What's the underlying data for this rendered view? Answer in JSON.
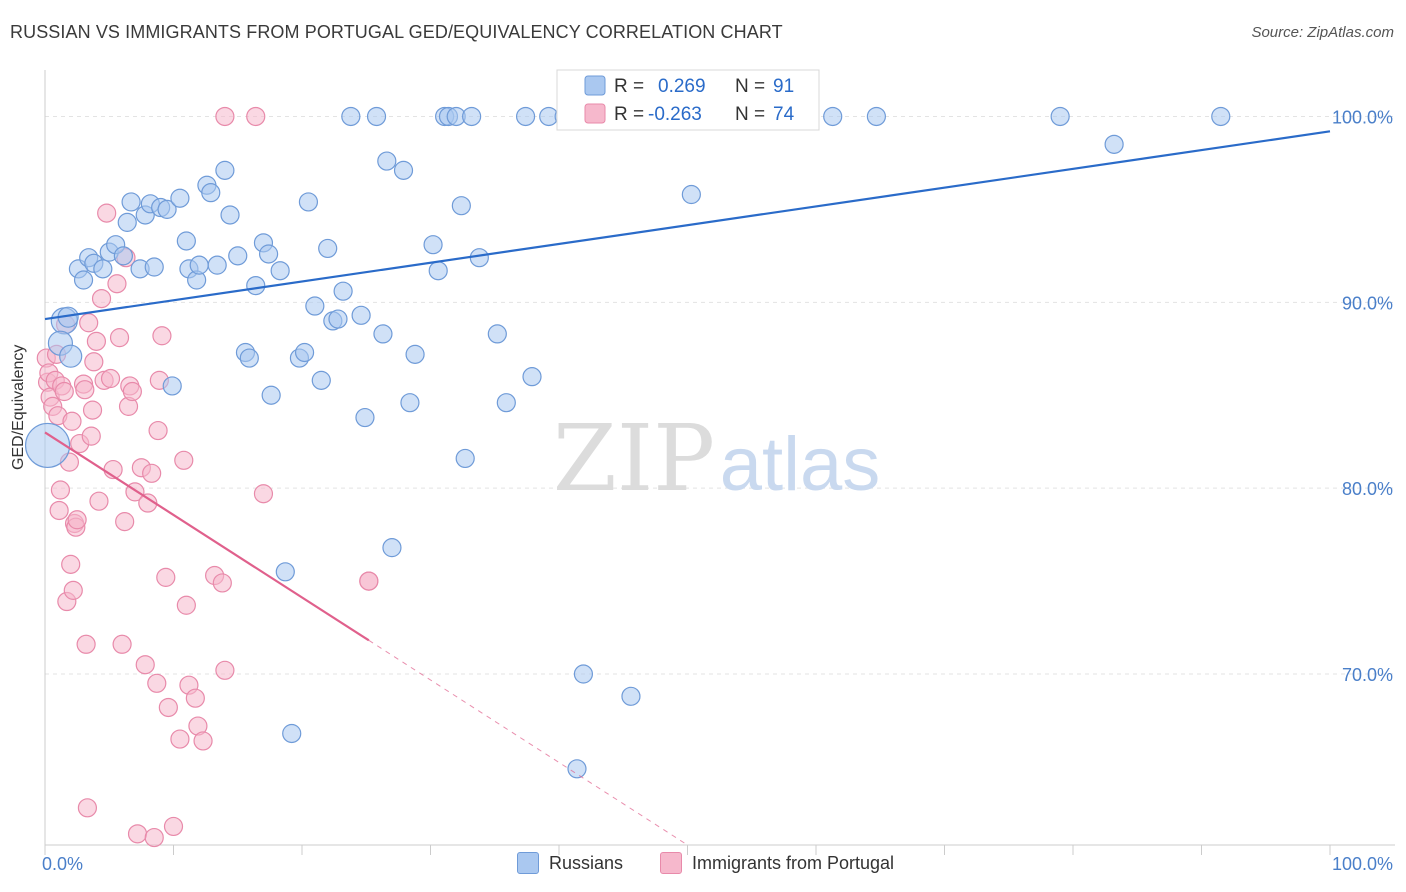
{
  "title": "RUSSIAN VS IMMIGRANTS FROM PORTUGAL GED/EQUIVALENCY CORRELATION CHART",
  "source": "Source: ZipAtlas.com",
  "watermark": {
    "zip": "ZIP",
    "atlas": "atlas"
  },
  "legend": {
    "rows": [
      {
        "r_label": "R = ",
        "r_value": "0.269",
        "n_label": "N = ",
        "n_value": "91"
      },
      {
        "r_label": "R = ",
        "r_value": "-0.263",
        "n_label": "N = ",
        "n_value": "74"
      }
    ]
  },
  "bottom_legend": [
    "Russians",
    "Immigrants from Portugal"
  ],
  "colors": {
    "russians_fill": "#aac8f0",
    "russians_stroke": "#6f9bd8",
    "russians_line": "#2a6bc9",
    "portugal_fill": "#f6b8cc",
    "portugal_stroke": "#e88aaa",
    "portugal_line": "#e0608c",
    "tick_label": "#4a7fc9",
    "grid": "#e3e3e3"
  },
  "chart_data": {
    "type": "scatter",
    "xlabel": "",
    "ylabel": "GED/Equivalency",
    "xlim": [
      0,
      100
    ],
    "ylim": [
      60.8,
      102.5
    ],
    "x_tick_labels": [
      {
        "value": 0,
        "label": "0.0%"
      },
      {
        "value": 100,
        "label": "100.0%"
      }
    ],
    "y_tick_labels": [
      {
        "value": 100,
        "label": "100.0%"
      },
      {
        "value": 90,
        "label": "90.0%"
      },
      {
        "value": 80,
        "label": "80.0%"
      },
      {
        "value": 70,
        "label": "70.0%"
      }
    ],
    "grid": true,
    "legend_position": "top-center",
    "series": [
      {
        "name": "Russians",
        "r": 0.269,
        "n": 91,
        "trend": {
          "x": [
            0,
            100
          ],
          "y": [
            89.1,
            99.2
          ],
          "dashed_from": null
        },
        "points": [
          [
            0.2,
            82.3,
            22
          ],
          [
            1.5,
            89.0,
            13
          ],
          [
            1.2,
            87.8,
            12
          ],
          [
            2.0,
            87.1,
            11
          ],
          [
            1.8,
            89.2,
            10
          ],
          [
            2.6,
            91.8,
            9
          ],
          [
            3.0,
            91.2,
            9
          ],
          [
            3.4,
            92.4,
            9
          ],
          [
            3.8,
            92.1,
            9
          ],
          [
            4.5,
            91.8,
            9
          ],
          [
            5.0,
            92.7,
            9
          ],
          [
            5.5,
            93.1,
            9
          ],
          [
            6.1,
            92.5,
            9
          ],
          [
            6.4,
            94.3,
            9
          ],
          [
            6.7,
            95.4,
            9
          ],
          [
            7.4,
            91.8,
            9
          ],
          [
            7.8,
            94.7,
            9
          ],
          [
            8.2,
            95.3,
            9
          ],
          [
            8.5,
            91.9,
            9
          ],
          [
            9.0,
            95.1,
            9
          ],
          [
            9.5,
            95.0,
            9
          ],
          [
            9.9,
            85.5,
            9
          ],
          [
            10.5,
            95.6,
            9
          ],
          [
            11.0,
            93.3,
            9
          ],
          [
            11.2,
            91.8,
            9
          ],
          [
            11.8,
            91.2,
            9
          ],
          [
            12.0,
            92.0,
            9
          ],
          [
            12.6,
            96.3,
            9
          ],
          [
            12.9,
            95.9,
            9
          ],
          [
            13.4,
            92.0,
            9
          ],
          [
            14.0,
            97.1,
            9
          ],
          [
            14.4,
            94.7,
            9
          ],
          [
            15.0,
            92.5,
            9
          ],
          [
            15.6,
            87.3,
            9
          ],
          [
            15.9,
            87.0,
            9
          ],
          [
            16.4,
            90.9,
            9
          ],
          [
            17.0,
            93.2,
            9
          ],
          [
            17.4,
            92.6,
            9
          ],
          [
            17.6,
            85.0,
            9
          ],
          [
            18.3,
            91.7,
            9
          ],
          [
            18.7,
            75.5,
            9
          ],
          [
            19.2,
            66.8,
            9
          ],
          [
            19.8,
            87.0,
            9
          ],
          [
            20.2,
            87.3,
            9
          ],
          [
            20.5,
            95.4,
            9
          ],
          [
            21.0,
            89.8,
            9
          ],
          [
            21.5,
            85.8,
            9
          ],
          [
            22.0,
            92.9,
            9
          ],
          [
            22.4,
            89.0,
            9
          ],
          [
            22.8,
            89.1,
            9
          ],
          [
            23.2,
            90.6,
            9
          ],
          [
            23.8,
            100.0,
            9
          ],
          [
            24.6,
            89.3,
            9
          ],
          [
            24.9,
            83.8,
            9
          ],
          [
            25.8,
            100.0,
            9
          ],
          [
            26.3,
            88.3,
            9
          ],
          [
            26.6,
            97.6,
            9
          ],
          [
            27.0,
            76.8,
            9
          ],
          [
            27.9,
            97.1,
            9
          ],
          [
            28.4,
            84.6,
            9
          ],
          [
            28.8,
            87.2,
            9
          ],
          [
            30.2,
            93.1,
            9
          ],
          [
            30.6,
            91.7,
            9
          ],
          [
            31.1,
            100.0,
            9
          ],
          [
            31.4,
            100.0,
            9
          ],
          [
            32.0,
            100.0,
            9
          ],
          [
            32.4,
            95.2,
            9
          ],
          [
            32.7,
            81.6,
            9
          ],
          [
            33.2,
            100.0,
            9
          ],
          [
            33.8,
            92.4,
            9
          ],
          [
            35.2,
            88.3,
            9
          ],
          [
            35.9,
            84.6,
            9
          ],
          [
            37.4,
            100.0,
            9
          ],
          [
            37.9,
            86.0,
            9
          ],
          [
            39.2,
            100.0,
            9
          ],
          [
            40.4,
            100.0,
            9
          ],
          [
            41.4,
            64.9,
            9
          ],
          [
            41.9,
            70.0,
            9
          ],
          [
            44.4,
            100.0,
            9
          ],
          [
            45.6,
            68.8,
            9
          ],
          [
            50.3,
            95.8,
            9
          ],
          [
            51.5,
            100.0,
            9
          ],
          [
            53.2,
            100.0,
            9
          ],
          [
            55.4,
            100.0,
            9
          ],
          [
            56.6,
            100.0,
            9
          ],
          [
            59.4,
            100.0,
            9
          ],
          [
            61.3,
            100.0,
            9
          ],
          [
            64.7,
            100.0,
            9
          ],
          [
            79.0,
            100.0,
            9
          ],
          [
            83.2,
            98.5,
            9
          ],
          [
            91.5,
            100.0,
            9
          ]
        ]
      },
      {
        "name": "Immigrants from Portugal",
        "r": -0.263,
        "n": 74,
        "trend": {
          "x": [
            0,
            50
          ],
          "y": [
            83.0,
            60.8
          ],
          "dashed_from": 25.2
        },
        "points": [
          [
            0.1,
            87.0,
            9
          ],
          [
            0.2,
            85.7,
            9
          ],
          [
            0.3,
            86.2,
            9
          ],
          [
            0.4,
            84.9,
            9
          ],
          [
            0.6,
            84.4,
            9
          ],
          [
            0.8,
            85.8,
            9
          ],
          [
            0.9,
            87.2,
            9
          ],
          [
            1.0,
            83.9,
            9
          ],
          [
            1.1,
            78.8,
            9
          ],
          [
            1.2,
            79.9,
            9
          ],
          [
            1.3,
            85.5,
            9
          ],
          [
            1.5,
            85.2,
            9
          ],
          [
            1.6,
            88.8,
            9
          ],
          [
            1.7,
            73.9,
            9
          ],
          [
            1.9,
            81.4,
            9
          ],
          [
            2.0,
            75.9,
            9
          ],
          [
            2.1,
            83.6,
            9
          ],
          [
            2.2,
            74.5,
            9
          ],
          [
            2.3,
            78.1,
            9
          ],
          [
            2.4,
            77.9,
            9
          ],
          [
            2.5,
            78.3,
            9
          ],
          [
            2.7,
            82.4,
            9
          ],
          [
            3.0,
            85.6,
            9
          ],
          [
            3.1,
            85.3,
            9
          ],
          [
            3.2,
            71.6,
            9
          ],
          [
            3.3,
            62.8,
            9
          ],
          [
            3.4,
            88.9,
            9
          ],
          [
            3.6,
            82.8,
            9
          ],
          [
            3.7,
            84.2,
            9
          ],
          [
            3.8,
            86.8,
            9
          ],
          [
            4.0,
            87.9,
            9
          ],
          [
            4.2,
            79.3,
            9
          ],
          [
            4.4,
            90.2,
            9
          ],
          [
            4.6,
            85.8,
            9
          ],
          [
            4.8,
            94.8,
            9
          ],
          [
            5.1,
            85.9,
            9
          ],
          [
            5.3,
            81.0,
            9
          ],
          [
            5.6,
            91.0,
            9
          ],
          [
            5.8,
            88.1,
            9
          ],
          [
            6.0,
            71.6,
            9
          ],
          [
            6.2,
            78.2,
            9
          ],
          [
            6.3,
            92.4,
            9
          ],
          [
            6.5,
            84.4,
            9
          ],
          [
            6.6,
            85.5,
            9
          ],
          [
            6.8,
            85.2,
            9
          ],
          [
            7.0,
            79.8,
            9
          ],
          [
            7.2,
            61.4,
            9
          ],
          [
            7.5,
            81.1,
            9
          ],
          [
            7.8,
            70.5,
            9
          ],
          [
            8.0,
            79.2,
            9
          ],
          [
            8.3,
            80.8,
            9
          ],
          [
            8.5,
            61.2,
            9
          ],
          [
            8.7,
            69.5,
            9
          ],
          [
            8.8,
            83.1,
            9
          ],
          [
            8.9,
            85.8,
            9
          ],
          [
            9.1,
            88.2,
            9
          ],
          [
            9.4,
            75.2,
            9
          ],
          [
            9.6,
            68.2,
            9
          ],
          [
            10.0,
            61.8,
            9
          ],
          [
            10.5,
            66.5,
            9
          ],
          [
            10.8,
            81.5,
            9
          ],
          [
            11.0,
            73.7,
            9
          ],
          [
            11.2,
            69.4,
            9
          ],
          [
            11.7,
            68.7,
            9
          ],
          [
            11.9,
            67.2,
            9
          ],
          [
            12.3,
            66.4,
            9
          ],
          [
            13.2,
            75.3,
            9
          ],
          [
            13.8,
            74.9,
            9
          ],
          [
            14.0,
            70.2,
            9
          ],
          [
            14.0,
            100.0,
            9
          ],
          [
            16.4,
            100.0,
            9
          ],
          [
            17.0,
            79.7,
            9
          ],
          [
            25.2,
            75.0,
            9
          ],
          [
            25.2,
            75.0,
            9
          ]
        ]
      }
    ]
  }
}
